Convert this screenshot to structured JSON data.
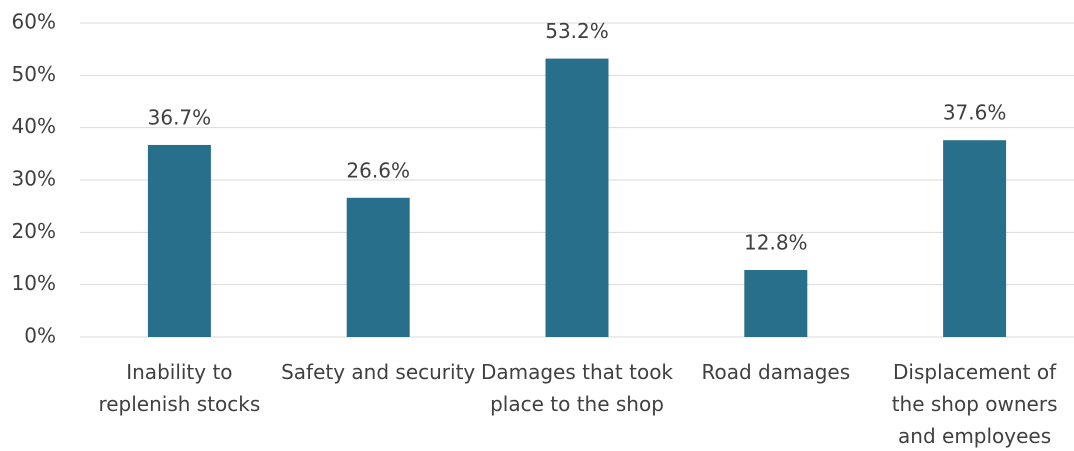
{
  "chart_data": {
    "type": "bar",
    "categories": [
      "Inability to replenish stocks",
      "Safety and security",
      "Damages that took place to the shop",
      "Road damages",
      "Displacement of the shop owners and employees"
    ],
    "values": [
      36.7,
      26.6,
      53.2,
      12.8,
      37.6
    ],
    "value_labels": [
      "36.7%",
      "26.6%",
      "53.2%",
      "12.8%",
      "37.6%"
    ],
    "color": "#286f8c",
    "ylim": [
      0,
      60
    ],
    "yticks": [
      {
        "value": 0,
        "label": "0%"
      },
      {
        "value": 10,
        "label": "10%"
      },
      {
        "value": 20,
        "label": "20%"
      },
      {
        "value": 30,
        "label": "30%"
      },
      {
        "value": 40,
        "label": "40%"
      },
      {
        "value": 50,
        "label": "50%"
      },
      {
        "value": 60,
        "label": "60%"
      }
    ],
    "grid": true
  }
}
